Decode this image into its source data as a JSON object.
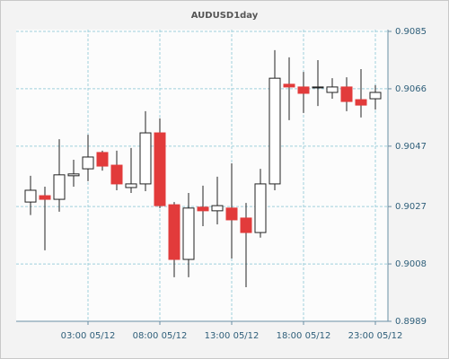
{
  "chart_data": {
    "type": "candlestick",
    "title": "AUDUSD1day",
    "categories": [
      null,
      null,
      null,
      null,
      "03:00 05/12",
      null,
      null,
      null,
      null,
      "08:00 05/12",
      null,
      null,
      null,
      null,
      "13:00 05/12",
      null,
      null,
      null,
      null,
      "18:00 05/12",
      null,
      null,
      null,
      null,
      "23:00 05/12"
    ],
    "open": [
      0.90285,
      0.90306,
      0.90294,
      0.90372,
      0.90395,
      0.90449,
      0.90407,
      0.90333,
      0.90345,
      0.90514,
      0.90276,
      0.90095,
      0.90268,
      0.90256,
      0.90265,
      0.90232,
      0.90184,
      0.90345,
      0.90675,
      0.90666,
      0.90665,
      0.90648,
      0.90666,
      0.90624,
      0.90627
    ],
    "high": [
      0.90372,
      0.90336,
      0.90493,
      0.90425,
      0.90508,
      0.90455,
      0.90455,
      0.90464,
      0.90586,
      0.90562,
      0.90285,
      0.90315,
      0.90339,
      0.90369,
      0.90413,
      0.90282,
      0.90395,
      0.90788,
      0.90764,
      0.90716,
      0.90755,
      0.90695,
      0.90698,
      0.90725,
      0.90672
    ],
    "low": [
      0.90242,
      0.90125,
      0.90253,
      0.90336,
      0.90354,
      0.90389,
      0.90324,
      0.90315,
      0.90321,
      0.90265,
      0.90036,
      0.90036,
      0.90205,
      0.90211,
      0.90098,
      0.90003,
      0.90167,
      0.90324,
      0.90556,
      0.9058,
      0.90603,
      0.90627,
      0.90586,
      0.90565,
      0.90591
    ],
    "close": [
      0.90324,
      0.90294,
      0.90375,
      0.90378,
      0.90434,
      0.90404,
      0.90345,
      0.90345,
      0.90514,
      0.90273,
      0.90095,
      0.90265,
      0.90256,
      0.90273,
      0.90226,
      0.90184,
      0.90345,
      0.90695,
      0.90666,
      0.90645,
      0.90666,
      0.90666,
      0.90618,
      0.90606,
      0.90648
    ],
    "up_color": "#ffffff",
    "down_color": "#e23b3b",
    "ylim": [
      0.8989,
      0.9085
    ],
    "yticks": [
      0.9085,
      0.9066,
      0.9047,
      0.9027,
      0.9008,
      0.8989
    ],
    "grid": true
  }
}
